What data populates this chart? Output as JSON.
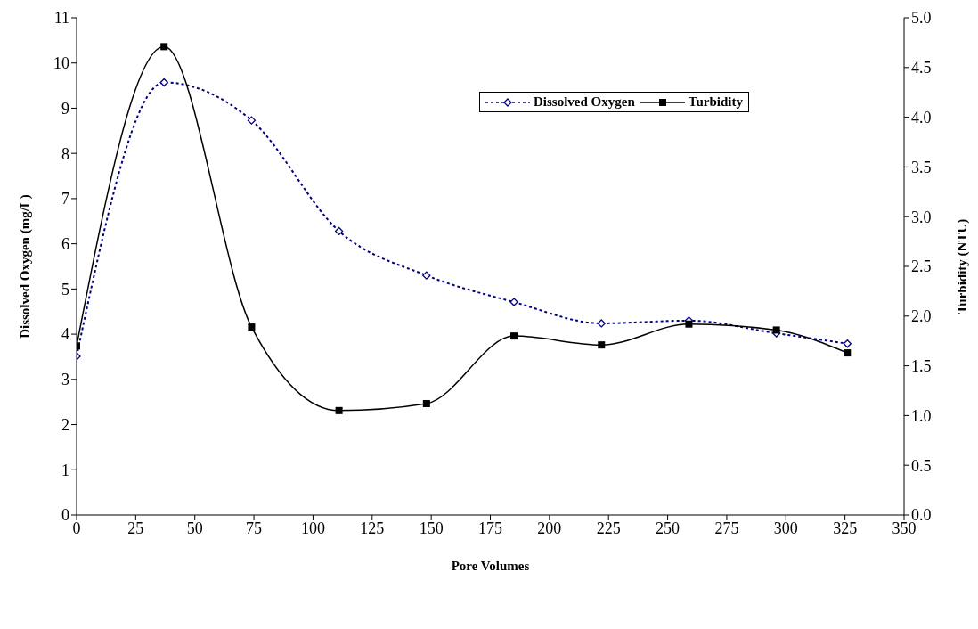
{
  "chart_data": {
    "type": "line",
    "xlabel": "Pore Volumes",
    "ylabel": "Dissolved Oxygen (mg/L)",
    "y2label": "Turbidity (NTU)",
    "x": [
      0,
      37,
      74,
      111,
      148,
      185,
      222,
      259,
      296,
      326
    ],
    "series": [
      {
        "name": "Dissolved Oxygen",
        "color": "#000080",
        "marker": "diamond",
        "line_style": "dotted",
        "values": [
          3.51,
          9.57,
          8.73,
          6.28,
          5.3,
          4.71,
          4.24,
          4.3,
          4.02,
          3.79
        ]
      },
      {
        "name": "Turbidity",
        "color": "#000000",
        "marker": "square",
        "line_style": "solid",
        "axis": "y2",
        "values": [
          1.7,
          4.71,
          1.89,
          1.05,
          1.12,
          1.8,
          1.71,
          1.92,
          1.86,
          1.63
        ]
      }
    ],
    "xlim": [
      0,
      350
    ],
    "xticks": [
      0,
      25,
      50,
      75,
      100,
      125,
      150,
      175,
      200,
      225,
      250,
      275,
      300,
      325,
      350
    ],
    "ylim": [
      0,
      11
    ],
    "yticks": [
      0,
      1,
      2,
      3,
      4,
      5,
      6,
      7,
      8,
      9,
      10,
      11
    ],
    "y2lim": [
      0,
      5
    ],
    "y2ticks": [
      {
        "value": 0,
        "label": "0.0"
      },
      {
        "value": 0.5,
        "label": "0.5"
      },
      {
        "value": 1,
        "label": "1.0"
      },
      {
        "value": 1.5,
        "label": "1.5"
      },
      {
        "value": 2,
        "label": "2.0"
      },
      {
        "value": 2.5,
        "label": "2.5"
      },
      {
        "value": 3,
        "label": "3.0"
      },
      {
        "value": 3.5,
        "label": "3.5"
      },
      {
        "value": 4,
        "label": "4.0"
      },
      {
        "value": 4.5,
        "label": "4.5"
      },
      {
        "value": 5,
        "label": "5.0"
      }
    ],
    "grid": false,
    "legend": "top right"
  }
}
